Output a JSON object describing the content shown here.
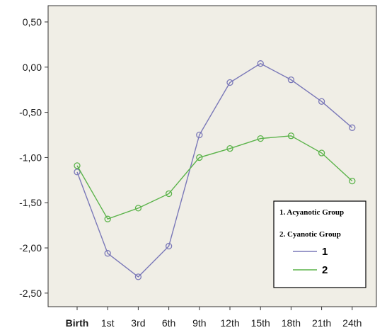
{
  "chart_data": {
    "type": "line",
    "categories": [
      "Birth",
      "1st",
      "3rd",
      "6th",
      "9th",
      "12th",
      "15th",
      "18th",
      "21th",
      "24th"
    ],
    "series": [
      {
        "name": "1",
        "color": "#7a78b8",
        "values": [
          -1.16,
          -2.06,
          -2.32,
          -1.98,
          -0.75,
          -0.17,
          0.04,
          -0.14,
          -0.38,
          -0.67
        ]
      },
      {
        "name": "2",
        "color": "#5bb34a",
        "values": [
          -1.09,
          -1.68,
          -1.56,
          -1.4,
          -1.0,
          -0.9,
          -0.79,
          -0.76,
          -0.95,
          -1.26
        ]
      }
    ],
    "yticks": [
      "0,50",
      "0,00",
      "-0,50",
      "-1,00",
      "-1,50",
      "-2,00",
      "-2,50"
    ],
    "ylim": [
      -2.65,
      0.68
    ],
    "grid": false,
    "plot_background": "#f0eee6",
    "legend": {
      "position": "bottom-right",
      "notes": [
        "1. Acyanotic Group",
        "2. Cyanotic Group"
      ],
      "entries": [
        "1",
        "2"
      ]
    },
    "title": "",
    "xlabel": "",
    "ylabel": ""
  }
}
